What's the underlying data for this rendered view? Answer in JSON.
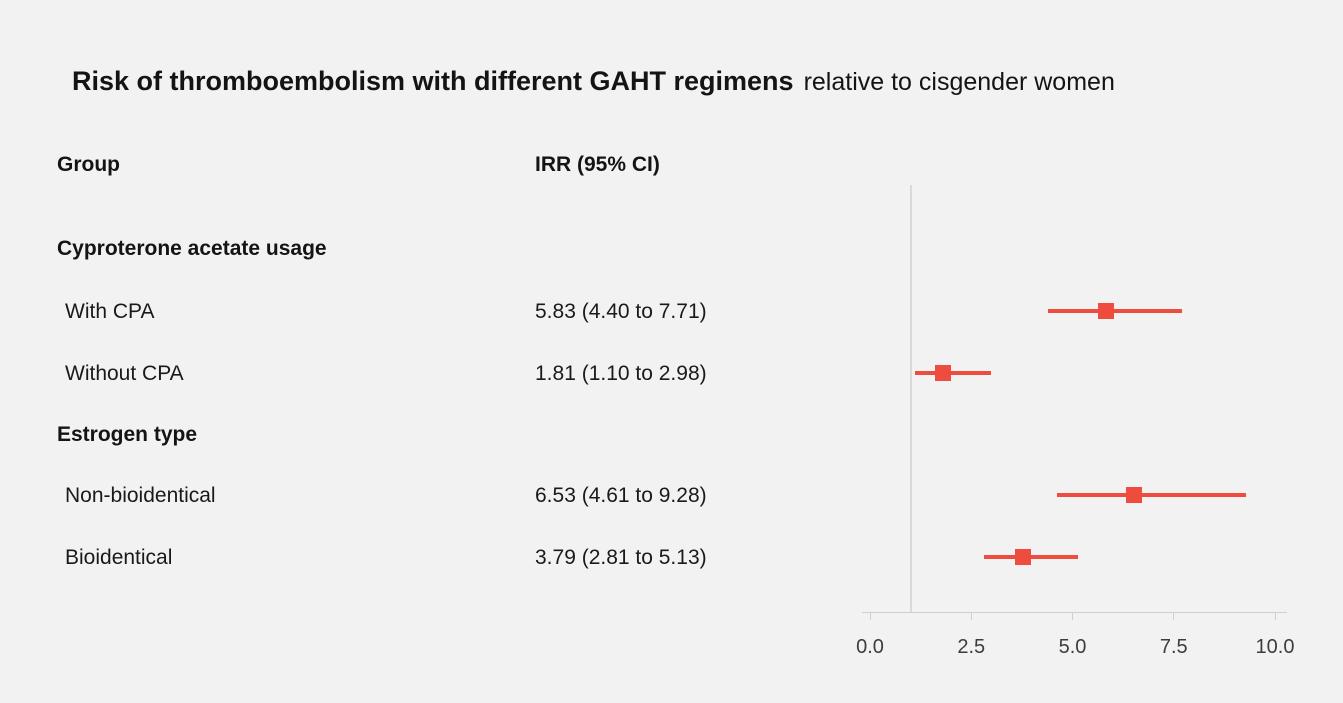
{
  "title": {
    "main": "Risk of thromboembolism with different GAHT regimens",
    "suffix": "relative to cisgender women"
  },
  "columns": {
    "group": "Group",
    "irr": "IRR (95% CI)"
  },
  "chart_data": {
    "type": "forest",
    "title": "Risk of thromboembolism with different GAHT regimens relative to cisgender women",
    "xlabel": "",
    "xlim": [
      0.0,
      10.0
    ],
    "x_ticks": [
      "0.0",
      "2.5",
      "5.0",
      "7.5",
      "10.0"
    ],
    "reference_line": 1.0,
    "legend": "none",
    "grid": "off",
    "groups": [
      {
        "label": "Cyproterone acetate usage",
        "rows": [
          {
            "label": "With CPA",
            "irr_text": "5.83 (4.40 to 7.71)",
            "estimate": 5.83,
            "ci_low": 4.4,
            "ci_high": 7.71
          },
          {
            "label": "Without CPA",
            "irr_text": "1.81 (1.10 to 2.98)",
            "estimate": 1.81,
            "ci_low": 1.1,
            "ci_high": 2.98
          }
        ]
      },
      {
        "label": "Estrogen type",
        "rows": [
          {
            "label": "Non-bioidentical",
            "irr_text": "6.53 (4.61 to 9.28)",
            "estimate": 6.53,
            "ci_low": 4.61,
            "ci_high": 9.28
          },
          {
            "label": "Bioidentical",
            "irr_text": "3.79 (2.81 to 5.13)",
            "estimate": 3.79,
            "ci_low": 2.81,
            "ci_high": 5.13
          }
        ]
      }
    ],
    "colors": {
      "marker": "#ee4c3f",
      "reference_line": "#d9d9d9",
      "axis": "#cfcfcf",
      "background": "#f2f2f2"
    }
  }
}
